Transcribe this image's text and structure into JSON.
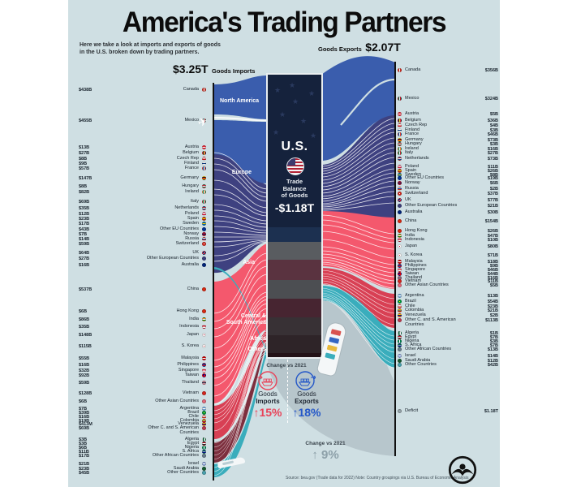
{
  "ui": {
    "title": "America's Trading Partners",
    "subtitle1": "Here we take a look at imports and exports of goods",
    "subtitle2": "in the U.S. broken down by trading partners.",
    "imports_total_value": "$3.25T",
    "imports_total_label": "Goods Imports",
    "exports_total_label": "Goods Exports",
    "exports_total_value": "$2.07T",
    "center_country": "U.S.",
    "center_balance_label": "Trade\nBalance\nof Goods",
    "center_balance_value": "-$1.18T",
    "region_labels": [
      "North America",
      "Europe",
      "Asia",
      "Central &\nSouth America",
      "Africa",
      "Others"
    ],
    "change_heading": "Change vs 2021",
    "imports_change_word1": "Goods",
    "imports_change_word2": "Imports",
    "imports_change_value": "↑15%",
    "exports_change_word1": "Goods",
    "exports_change_word2": "Exports",
    "exports_change_value": "↑18%",
    "balance_change_heading": "Change vs 2021",
    "balance_change_value": "↑ 9%",
    "deficit_label": "Deficit",
    "deficit_value": "$1.18T",
    "source": "Source: bea.gov (Trade data for 2022)   Note: Country groupings via U.S. Bureau of Economic Analysis"
  },
  "colors": {
    "background": "#cfdfe3",
    "north_america_flow": "#3a5dad",
    "europe_flow": "#3e4180",
    "asia_flow": "#f4586d",
    "central_south_america_flow": "#d84054",
    "africa_flow": "#7d2f3e",
    "others_flow": "#3aadbc",
    "deficit_flow": "#b7c6cc",
    "imports_accent": "#e8445a",
    "exports_accent": "#2457c8"
  },
  "chart_data": {
    "type": "sankey",
    "title": "America's Trading Partners",
    "totals": {
      "goods_imports": "$3.25T",
      "goods_exports": "$2.07T",
      "trade_balance_of_goods": "-$1.18T",
      "deficit": "$1.18T"
    },
    "change_vs_2021": {
      "goods_imports": "+15%",
      "goods_exports": "+18%",
      "trade_balance": "+9%"
    },
    "regions": [
      "North America",
      "Europe",
      "Asia",
      "Central & South America",
      "Africa",
      "Others"
    ],
    "imports": [
      {
        "country": "Canada",
        "value": "$438B"
      },
      {
        "country": "Mexico",
        "value": "$455B"
      },
      {
        "country": "Austria",
        "value": "$13B"
      },
      {
        "country": "Belgium",
        "value": "$27B"
      },
      {
        "country": "Czech Rep",
        "value": "$8B"
      },
      {
        "country": "Finland",
        "value": "$9B"
      },
      {
        "country": "France",
        "value": "$57B"
      },
      {
        "country": "Germany",
        "value": "$147B"
      },
      {
        "country": "Hungary",
        "value": "$8B"
      },
      {
        "country": "Ireland",
        "value": "$82B"
      },
      {
        "country": "Italy",
        "value": "$69B"
      },
      {
        "country": "Netherlands",
        "value": "$35B"
      },
      {
        "country": "Poland",
        "value": "$12B"
      },
      {
        "country": "Spain",
        "value": "$23B"
      },
      {
        "country": "Sweden",
        "value": "$17B"
      },
      {
        "country": "Other EU Countries",
        "value": "$43B"
      },
      {
        "country": "Norway",
        "value": "$7B"
      },
      {
        "country": "Russia",
        "value": "$14B"
      },
      {
        "country": "Switzerland",
        "value": "$59B"
      },
      {
        "country": "UK",
        "value": "$64B"
      },
      {
        "country": "Other European Countries",
        "value": "$27B"
      },
      {
        "country": "Australia",
        "value": "$16B"
      },
      {
        "country": "China",
        "value": "$537B"
      },
      {
        "country": "Hong Kong",
        "value": "$6B"
      },
      {
        "country": "India",
        "value": "$86B"
      },
      {
        "country": "Indonesia",
        "value": "$35B"
      },
      {
        "country": "Japan",
        "value": "$148B"
      },
      {
        "country": "S. Korea",
        "value": "$115B"
      },
      {
        "country": "Malaysia",
        "value": "$55B"
      },
      {
        "country": "Philippines",
        "value": "$16B"
      },
      {
        "country": "Singapore",
        "value": "$32B"
      },
      {
        "country": "Taiwan",
        "value": "$92B"
      },
      {
        "country": "Thailand",
        "value": "$59B"
      },
      {
        "country": "Vietnam",
        "value": "$128B"
      },
      {
        "country": "Other Asian Countries",
        "value": "$6B"
      },
      {
        "country": "Argentina",
        "value": "$7B"
      },
      {
        "country": "Brazil",
        "value": "$39B"
      },
      {
        "country": "Chile",
        "value": "$16B"
      },
      {
        "country": "Colombia",
        "value": "$19B"
      },
      {
        "country": "Venezuela",
        "value": "$413M"
      },
      {
        "country": "Other C. and S. American Countries",
        "value": "$69B"
      },
      {
        "country": "Algeria",
        "value": "$3B"
      },
      {
        "country": "Egypt",
        "value": "$3B"
      },
      {
        "country": "Nigeria",
        "value": "$6B"
      },
      {
        "country": "S. Africa",
        "value": "$11B"
      },
      {
        "country": "Other African Countries",
        "value": "$17B"
      },
      {
        "country": "Israel",
        "value": "$21B"
      },
      {
        "country": "Saudi Arabia",
        "value": "$23B"
      },
      {
        "country": "Other Countries",
        "value": "$45B"
      }
    ],
    "exports": [
      {
        "country": "Canada",
        "value": "$356B"
      },
      {
        "country": "Mexico",
        "value": "$324B"
      },
      {
        "country": "Austria",
        "value": "$5B"
      },
      {
        "country": "Belgium",
        "value": "$36B"
      },
      {
        "country": "Czech Rep",
        "value": "$4B"
      },
      {
        "country": "Finland",
        "value": "$3B"
      },
      {
        "country": "France",
        "value": "$46B"
      },
      {
        "country": "Germany",
        "value": "$73B"
      },
      {
        "country": "Hungary",
        "value": "$3B"
      },
      {
        "country": "Ireland",
        "value": "$16B"
      },
      {
        "country": "Italy",
        "value": "$27B"
      },
      {
        "country": "Netherlands",
        "value": "$73B"
      },
      {
        "country": "Poland",
        "value": "$11B"
      },
      {
        "country": "Spain",
        "value": "$26B"
      },
      {
        "country": "Sweden",
        "value": "$8B"
      },
      {
        "country": "Other EU Countries",
        "value": "$19B"
      },
      {
        "country": "Norway",
        "value": "$6B"
      },
      {
        "country": "Russia",
        "value": "$2B"
      },
      {
        "country": "Switzerland",
        "value": "$37B"
      },
      {
        "country": "UK",
        "value": "$77B"
      },
      {
        "country": "Other European Countries",
        "value": "$21B"
      },
      {
        "country": "Australia",
        "value": "$30B"
      },
      {
        "country": "China",
        "value": "$154B"
      },
      {
        "country": "Hong Kong",
        "value": "$26B"
      },
      {
        "country": "India",
        "value": "$47B"
      },
      {
        "country": "Indonesia",
        "value": "$10B"
      },
      {
        "country": "Japan",
        "value": "$80B"
      },
      {
        "country": "S. Korea",
        "value": "$71B"
      },
      {
        "country": "Malaysia",
        "value": "$18B"
      },
      {
        "country": "Philippines",
        "value": "$9B"
      },
      {
        "country": "Singapore",
        "value": "$46B"
      },
      {
        "country": "Taiwan",
        "value": "$44B"
      },
      {
        "country": "Thailand",
        "value": "$16B"
      },
      {
        "country": "Vietnam",
        "value": "$11B"
      },
      {
        "country": "Other Asian Countries",
        "value": "$5B"
      },
      {
        "country": "Argentina",
        "value": "$13B"
      },
      {
        "country": "Brazil",
        "value": "$54B"
      },
      {
        "country": "Chile",
        "value": "$23B"
      },
      {
        "country": "Colombia",
        "value": "$21B"
      },
      {
        "country": "Venezuela",
        "value": "$2B"
      },
      {
        "country": "Other C. and S. American Countries",
        "value": "$113B"
      },
      {
        "country": "Algeria",
        "value": "$1B"
      },
      {
        "country": "Egypt",
        "value": "$7B"
      },
      {
        "country": "Nigeria",
        "value": "$3B"
      },
      {
        "country": "S. Africa",
        "value": "$7B"
      },
      {
        "country": "Other African Countries",
        "value": "$13B"
      },
      {
        "country": "Israel",
        "value": "$14B"
      },
      {
        "country": "Saudi Arabia",
        "value": "$12B"
      },
      {
        "country": "Other Countries",
        "value": "$42B"
      }
    ]
  }
}
